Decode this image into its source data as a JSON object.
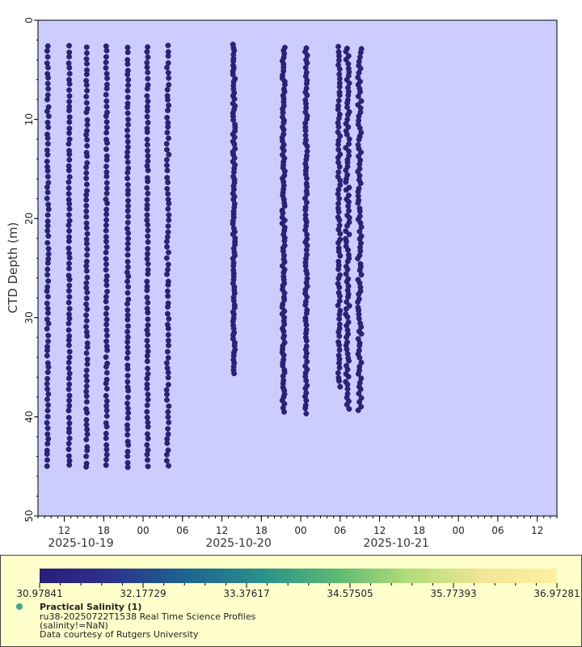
{
  "chart_data": {
    "type": "scatter",
    "title": "",
    "xlabel": "",
    "ylabel": "CTD Depth (m)",
    "ylim": [
      0,
      50
    ],
    "y_inverted": true,
    "y_ticks": [
      "0",
      "10",
      "20",
      "30",
      "40",
      "50"
    ],
    "x_axis": "time",
    "xlim": [
      "2025-10-18T08:00",
      "2025-10-21T15:00"
    ],
    "x_hour_ticks": [
      {
        "t": "2025-10-18T12:00",
        "label": "12"
      },
      {
        "t": "2025-10-18T18:00",
        "label": "18"
      },
      {
        "t": "2025-10-19T00:00",
        "label": "00"
      },
      {
        "t": "2025-10-19T06:00",
        "label": "06"
      },
      {
        "t": "2025-10-19T12:00",
        "label": "12"
      },
      {
        "t": "2025-10-19T18:00",
        "label": "18"
      },
      {
        "t": "2025-10-20T00:00",
        "label": "00"
      },
      {
        "t": "2025-10-20T06:00",
        "label": "06"
      },
      {
        "t": "2025-10-20T12:00",
        "label": "12"
      },
      {
        "t": "2025-10-20T18:00",
        "label": "18"
      },
      {
        "t": "2025-10-21T00:00",
        "label": "00"
      },
      {
        "t": "2025-10-21T06:00",
        "label": "06"
      },
      {
        "t": "2025-10-21T12:00",
        "label": "12"
      }
    ],
    "x_date_labels": [
      {
        "t": "2025-10-19T00:00",
        "label": "2025-10-19"
      },
      {
        "t": "2025-10-20T00:00",
        "label": "2025-10-20"
      },
      {
        "t": "2025-10-21T00:00",
        "label": "2025-10-21"
      }
    ],
    "background_color": "#ccccff",
    "point_color": "#2d237a",
    "series": [
      {
        "t": "2025-10-18T09:22",
        "t_end": "2025-10-18T09:38",
        "depth_min": 2.6,
        "depth_max": 45.0,
        "spacing": 0.55
      },
      {
        "t": "2025-10-18T12:40",
        "t_end": "2025-10-18T12:50",
        "depth_min": 2.6,
        "depth_max": 45.2,
        "spacing": 0.55
      },
      {
        "t": "2025-10-18T15:20",
        "t_end": "2025-10-18T15:32",
        "depth_min": 2.8,
        "depth_max": 45.2,
        "spacing": 0.55
      },
      {
        "t": "2025-10-18T18:20",
        "t_end": "2025-10-18T18:32",
        "depth_min": 2.6,
        "depth_max": 45.2,
        "spacing": 0.55
      },
      {
        "t": "2025-10-18T21:35",
        "t_end": "2025-10-18T21:45",
        "depth_min": 2.8,
        "depth_max": 45.2,
        "spacing": 0.55
      },
      {
        "t": "2025-10-19T00:35",
        "t_end": "2025-10-19T00:45",
        "depth_min": 2.6,
        "depth_max": 45.0,
        "spacing": 0.55
      },
      {
        "t": "2025-10-19T03:35",
        "t_end": "2025-10-19T03:55",
        "depth_min": 2.6,
        "depth_max": 45.0,
        "spacing": 0.55
      },
      {
        "t": "2025-10-19T13:40",
        "t_end": "2025-10-19T14:00",
        "depth_min": 2.4,
        "depth_max": 35.9,
        "spacing": 0.35
      },
      {
        "t": "2025-10-19T21:10",
        "t_end": "2025-10-19T21:35",
        "depth_min": 2.7,
        "depth_max": 39.6,
        "spacing": 0.35
      },
      {
        "t": "2025-10-20T00:40",
        "t_end": "2025-10-20T01:00",
        "depth_min": 2.8,
        "depth_max": 39.8,
        "spacing": 0.4
      },
      {
        "t": "2025-10-20T05:40",
        "t_end": "2025-10-20T06:00",
        "depth_min": 2.7,
        "depth_max": 36.9,
        "spacing": 0.45
      },
      {
        "t": "2025-10-20T06:50",
        "t_end": "2025-10-20T07:25",
        "depth_min": 2.8,
        "depth_max": 39.4,
        "spacing": 0.4
      },
      {
        "t": "2025-10-20T08:40",
        "t_end": "2025-10-20T09:15",
        "depth_min": 2.9,
        "depth_max": 39.3,
        "spacing": 0.4
      }
    ],
    "colorbar": {
      "min": 30.97841,
      "max": 36.97281,
      "tick_labels": [
        "30.97841",
        "32.17729",
        "33.37617",
        "34.57505",
        "35.77393",
        "36.97281"
      ],
      "colors": [
        "#281e78",
        "#2c348c",
        "#1e6491",
        "#2a908c",
        "#5ab973",
        "#b4dc78",
        "#f0e696",
        "#fff0a0"
      ]
    },
    "legend": {
      "title": "Practical Salinity (1)",
      "dataset": "ru38-20250722T1538 Real Time Science Profiles",
      "constraint": "(salinity!=NaN)",
      "courtesy": "Data courtesy of Rutgers University",
      "marker_color": "#3ca58a"
    }
  }
}
